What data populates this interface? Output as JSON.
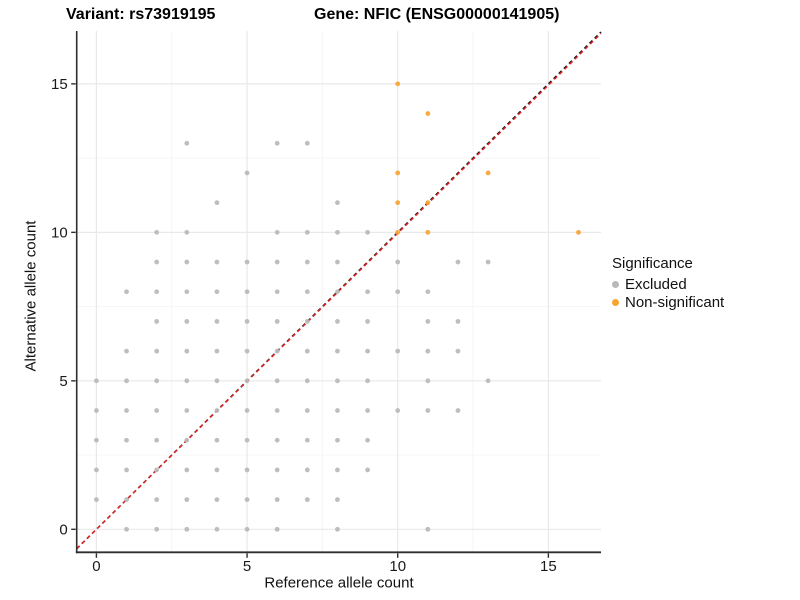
{
  "titles": {
    "variant": "Variant: rs73919195",
    "gene": "Gene: NFIC (ENSG00000141905)"
  },
  "axes": {
    "x_label": "Reference allele count",
    "y_label": "Alternative allele count"
  },
  "legend": {
    "title": "Significance",
    "items": [
      {
        "label": "Excluded",
        "color": "#b9b9b9"
      },
      {
        "label": "Non-significant",
        "color": "#f6a432"
      }
    ]
  },
  "chart_data": {
    "type": "scatter",
    "title": "Variant: rs73919195   Gene: NFIC (ENSG00000141905)",
    "xlabel": "Reference allele count",
    "ylabel": "Alternative allele count",
    "x_ticks": [
      0,
      5,
      10,
      15
    ],
    "y_ticks": [
      0,
      5,
      10,
      15
    ],
    "x_minor_ticks": [
      2.5,
      7.5,
      12.5
    ],
    "y_minor_ticks": [
      2.5,
      7.5,
      12.5
    ],
    "xlim": [
      -0.654,
      16.747
    ],
    "ylim": [
      -0.774,
      16.78
    ],
    "grid": true,
    "legend_position": "right",
    "colors": {
      "major_grid": "#e9e9e9",
      "minor_grid": "#f4f4f4",
      "axis": "#2e2e2e",
      "identity_line": "#151515",
      "fit_line": "#e02424"
    },
    "lines": [
      {
        "name": "identity",
        "style": "dashed",
        "color": "#151515",
        "slope": 1,
        "intercept": 0
      },
      {
        "name": "fit",
        "style": "dashed",
        "color": "#e02424",
        "slope": 0.997,
        "intercept": 0
      }
    ],
    "series": [
      {
        "name": "Excluded",
        "color": "#b9b9b9",
        "points": [
          [
            1,
            0
          ],
          [
            2,
            0
          ],
          [
            3,
            0
          ],
          [
            4,
            0
          ],
          [
            5,
            0
          ],
          [
            6,
            0
          ],
          [
            8,
            0
          ],
          [
            11,
            0
          ],
          [
            0,
            1
          ],
          [
            1,
            1
          ],
          [
            2,
            1
          ],
          [
            3,
            1
          ],
          [
            4,
            1
          ],
          [
            5,
            1
          ],
          [
            6,
            1
          ],
          [
            7,
            1
          ],
          [
            8,
            1
          ],
          [
            0,
            2
          ],
          [
            1,
            2
          ],
          [
            2,
            2
          ],
          [
            3,
            2
          ],
          [
            4,
            2
          ],
          [
            5,
            2
          ],
          [
            6,
            2
          ],
          [
            7,
            2
          ],
          [
            8,
            2
          ],
          [
            9,
            2
          ],
          [
            0,
            3
          ],
          [
            1,
            3
          ],
          [
            2,
            3
          ],
          [
            3,
            3
          ],
          [
            4,
            3
          ],
          [
            5,
            3
          ],
          [
            6,
            3
          ],
          [
            7,
            3
          ],
          [
            8,
            3
          ],
          [
            9,
            3
          ],
          [
            0,
            4
          ],
          [
            1,
            4
          ],
          [
            2,
            4
          ],
          [
            3,
            4
          ],
          [
            4,
            4
          ],
          [
            5,
            4
          ],
          [
            6,
            4
          ],
          [
            7,
            4
          ],
          [
            8,
            4
          ],
          [
            9,
            4
          ],
          [
            10,
            4
          ],
          [
            11,
            4
          ],
          [
            12,
            4
          ],
          [
            0,
            5
          ],
          [
            1,
            5
          ],
          [
            2,
            5
          ],
          [
            3,
            5
          ],
          [
            4,
            5
          ],
          [
            5,
            5
          ],
          [
            6,
            5
          ],
          [
            7,
            5
          ],
          [
            8,
            5
          ],
          [
            9,
            5
          ],
          [
            11,
            5
          ],
          [
            13,
            5
          ],
          [
            1,
            6
          ],
          [
            2,
            6
          ],
          [
            3,
            6
          ],
          [
            4,
            6
          ],
          [
            5,
            6
          ],
          [
            6,
            6
          ],
          [
            7,
            6
          ],
          [
            8,
            6
          ],
          [
            9,
            6
          ],
          [
            10,
            6
          ],
          [
            11,
            6
          ],
          [
            12,
            6
          ],
          [
            2,
            7
          ],
          [
            3,
            7
          ],
          [
            4,
            7
          ],
          [
            5,
            7
          ],
          [
            6,
            7
          ],
          [
            7,
            7
          ],
          [
            8,
            7
          ],
          [
            9,
            7
          ],
          [
            11,
            7
          ],
          [
            12,
            7
          ],
          [
            1,
            8
          ],
          [
            2,
            8
          ],
          [
            3,
            8
          ],
          [
            4,
            8
          ],
          [
            5,
            8
          ],
          [
            6,
            8
          ],
          [
            7,
            8
          ],
          [
            8,
            8
          ],
          [
            9,
            8
          ],
          [
            10,
            8
          ],
          [
            11,
            8
          ],
          [
            2,
            9
          ],
          [
            3,
            9
          ],
          [
            4,
            9
          ],
          [
            5,
            9
          ],
          [
            6,
            9
          ],
          [
            7,
            9
          ],
          [
            8,
            9
          ],
          [
            10,
            9
          ],
          [
            12,
            9
          ],
          [
            13,
            9
          ],
          [
            2,
            10
          ],
          [
            3,
            10
          ],
          [
            6,
            10
          ],
          [
            7,
            10
          ],
          [
            8,
            10
          ],
          [
            9,
            10
          ],
          [
            4,
            11
          ],
          [
            8,
            11
          ],
          [
            5,
            12
          ],
          [
            3,
            13
          ],
          [
            6,
            13
          ],
          [
            7,
            13
          ]
        ]
      },
      {
        "name": "Non-significant",
        "color": "#f6a432",
        "points": [
          [
            10,
            10
          ],
          [
            11,
            10
          ],
          [
            16,
            10
          ],
          [
            10,
            11
          ],
          [
            11,
            11
          ],
          [
            10,
            12
          ],
          [
            13,
            12
          ],
          [
            11,
            14
          ],
          [
            10,
            15
          ]
        ]
      }
    ]
  }
}
